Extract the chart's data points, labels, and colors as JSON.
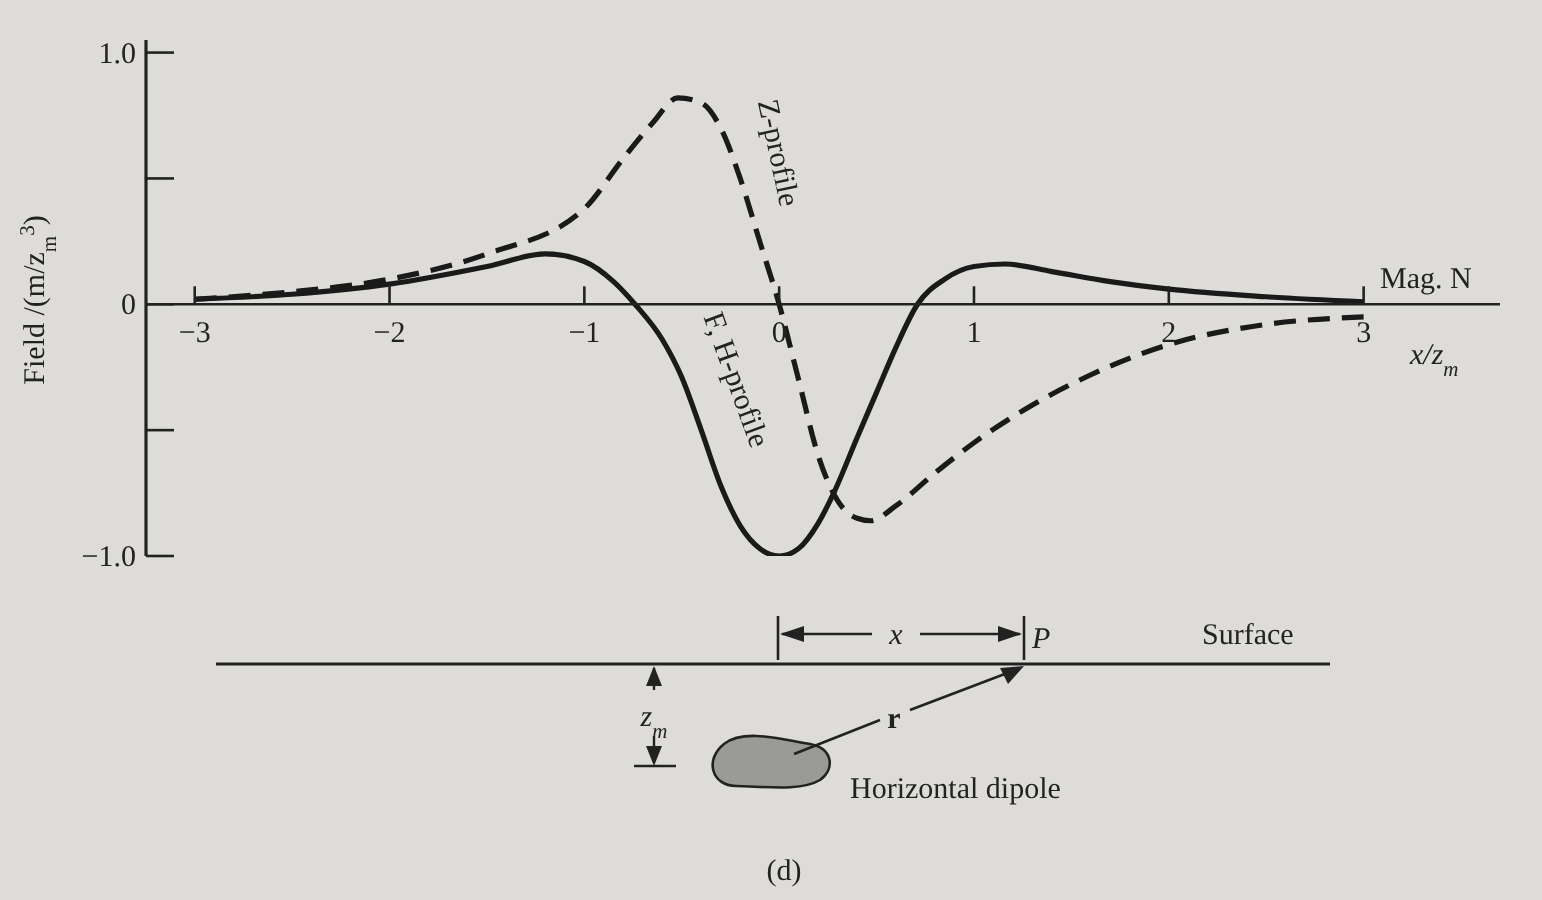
{
  "chart_data": {
    "type": "line",
    "ylabel": "Field /(m/z$_{m}$$^{3}$)",
    "xlabel": "x/z$_{m}$",
    "xlim": [
      -3.25,
      3.7
    ],
    "ylim": [
      -1.0,
      1.05
    ],
    "xticks": [
      {
        "value": -3,
        "label": "−3"
      },
      {
        "value": -2,
        "label": "−2"
      },
      {
        "value": -1,
        "label": "−1"
      },
      0,
      1,
      2,
      3
    ],
    "yticks": [
      {
        "value": -1,
        "label": "−1.0"
      },
      {
        "value": -0.5,
        "label": null
      },
      0,
      {
        "value": 0.5,
        "label": null
      },
      {
        "value": 1,
        "label": "1.0"
      }
    ],
    "series": [
      {
        "name": "F, H-profile",
        "color": "#1a1a1a",
        "line_style": "solid",
        "x": [
          -3,
          -2.5,
          -2,
          -1.5,
          -1.2,
          -1,
          -0.85,
          -0.74,
          -0.6,
          -0.5,
          -0.4,
          -0.3,
          -0.2,
          -0.1,
          0,
          0.1,
          0.2,
          0.28,
          0.4,
          0.5,
          0.6,
          0.71,
          0.85,
          1,
          1.16,
          1.4,
          1.7,
          2,
          2.5,
          3
        ],
        "values": [
          0.02,
          0.04,
          0.08,
          0.15,
          0.2,
          0.17,
          0.09,
          0,
          -0.14,
          -0.29,
          -0.5,
          -0.72,
          -0.88,
          -0.97,
          -1.0,
          -0.97,
          -0.87,
          -0.75,
          -0.53,
          -0.35,
          -0.17,
          0,
          0.1,
          0.15,
          0.16,
          0.13,
          0.09,
          0.06,
          0.03,
          0.01
        ]
      },
      {
        "name": "Z-profile",
        "color": "#1a1a1a",
        "line_style": "dashed",
        "x": [
          -3,
          -2.5,
          -2,
          -1.5,
          -1,
          -0.8,
          -0.65,
          -0.52,
          -0.4,
          -0.3,
          -0.2,
          -0.1,
          0,
          0.1,
          0.2,
          0.3,
          0.4,
          0.47,
          0.6,
          0.8,
          1,
          1.3,
          1.6,
          2,
          2.5,
          3
        ],
        "values": [
          0.02,
          0.05,
          0.1,
          0.2,
          0.38,
          0.58,
          0.72,
          0.82,
          0.8,
          0.7,
          0.5,
          0.25,
          0,
          -0.3,
          -0.6,
          -0.78,
          -0.85,
          -0.86,
          -0.8,
          -0.67,
          -0.55,
          -0.4,
          -0.28,
          -0.16,
          -0.08,
          -0.05
        ]
      }
    ],
    "annotations": [
      "Mag. N",
      "Surface",
      "x",
      "P",
      "z$_{m}$",
      "r",
      "Horizontal dipole",
      "(d)"
    ]
  }
}
